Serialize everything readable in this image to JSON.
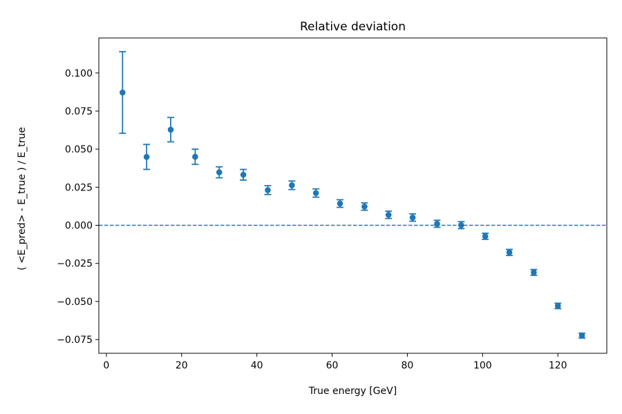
{
  "chart_data": {
    "type": "scatter",
    "title": "Relative deviation",
    "xlabel": "True energy [GeV]",
    "ylabel": "( <E_pred> - E_true ) / E_true",
    "xlim": [
      -2,
      133
    ],
    "ylim": [
      -0.084,
      0.123
    ],
    "xticks": [
      0,
      20,
      40,
      60,
      80,
      100,
      120
    ],
    "xtick_labels": [
      "0",
      "20",
      "40",
      "60",
      "80",
      "100",
      "120"
    ],
    "yticks": [
      0.1,
      0.075,
      0.05,
      0.025,
      0.0,
      -0.025,
      -0.05,
      -0.075
    ],
    "ytick_labels": [
      "0.100",
      "0.075",
      "0.050",
      "0.025",
      "0.000",
      "−0.025",
      "−0.050",
      "−0.075"
    ],
    "grid": false,
    "reference_line": {
      "y": 0.0,
      "style": "dashed"
    },
    "series": [
      {
        "color": "#1f77b4",
        "x": [
          4.3,
          10.7,
          17.1,
          23.6,
          30.0,
          36.4,
          42.9,
          49.3,
          55.7,
          62.1,
          68.6,
          75.0,
          81.4,
          87.9,
          94.3,
          100.7,
          107.1,
          113.6,
          120.0,
          126.4
        ],
        "y": [
          0.0872,
          0.0449,
          0.0628,
          0.045,
          0.0348,
          0.0332,
          0.0231,
          0.0263,
          0.0212,
          0.0143,
          0.0123,
          0.0069,
          0.0051,
          0.001,
          0.0001,
          -0.0072,
          -0.0178,
          -0.0309,
          -0.0529,
          -0.0724
        ],
        "yerr": [
          0.0268,
          0.0082,
          0.008,
          0.005,
          0.0036,
          0.0035,
          0.0029,
          0.0028,
          0.0027,
          0.0025,
          0.0024,
          0.0024,
          0.0024,
          0.0023,
          0.0023,
          0.002,
          0.002,
          0.0019,
          0.0018,
          0.0016
        ]
      }
    ]
  }
}
